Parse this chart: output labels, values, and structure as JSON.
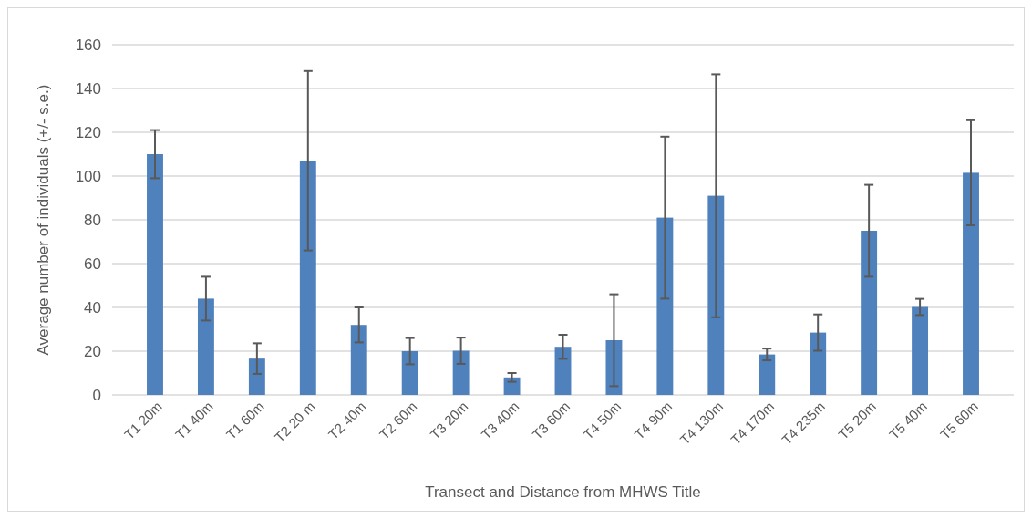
{
  "chart_data": {
    "type": "bar",
    "xlabel": "Transect and Distance from MHWS Title",
    "ylabel": "Average number of individuals (+/- s.e.)",
    "categories": [
      "T1 20m",
      "T1 40m",
      "T1 60m",
      "T2 20 m",
      "T2 40m",
      "T2 60m",
      "T3 20m",
      "T3 40m",
      "T3 60m",
      "T4 50m",
      "T4 90m",
      "T4 130m",
      "T4 170m",
      "T4 235m",
      "T5 20m",
      "T5 40m",
      "T5 60m"
    ],
    "values": [
      110,
      44,
      16.6,
      107,
      32,
      20,
      20.2,
      8,
      22,
      25,
      81,
      91,
      18.5,
      28.5,
      75,
      40.2,
      101.5
    ],
    "errors": [
      11,
      10,
      7,
      41,
      8,
      6,
      6,
      2,
      5.5,
      21,
      37,
      55.5,
      2.7,
      8.3,
      21,
      3.7,
      24
    ],
    "color": "#4f81bd",
    "ylim": [
      0,
      160
    ],
    "yticks": [
      0,
      20,
      40,
      60,
      80,
      100,
      120,
      140,
      160
    ],
    "grid": "y"
  }
}
